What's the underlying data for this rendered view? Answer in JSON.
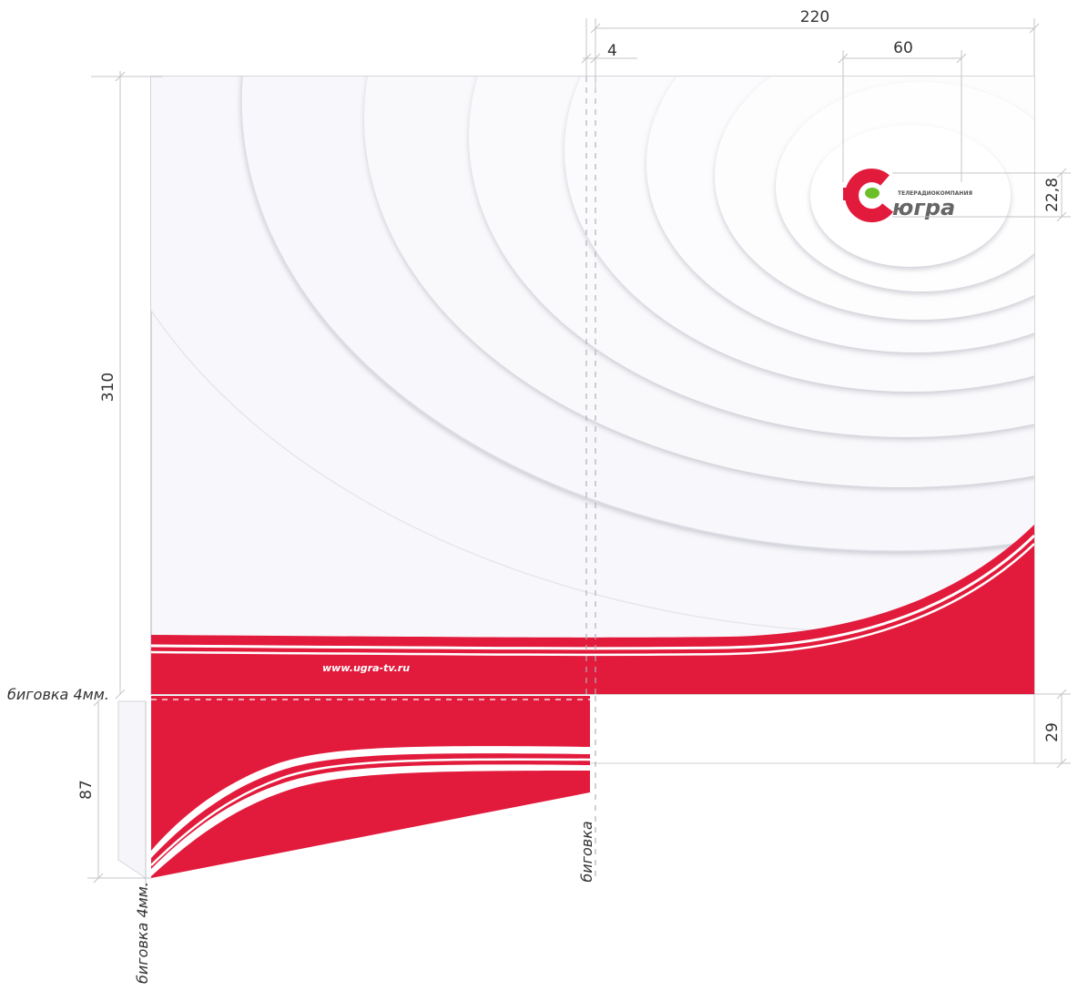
{
  "dimensions": {
    "width_total": "220",
    "spine": "4",
    "logo_width": "60",
    "height_total": "310",
    "logo_height": "22,8",
    "flap_height": "87",
    "pocket_height": "29"
  },
  "annotations": {
    "crease_top": "биговка  4мм.",
    "crease_left": "биговка  4мм.",
    "crease_middle": "биговка"
  },
  "branding": {
    "logo_letter": "Ю",
    "logo_small": "ТЕЛЕРАДИОКОМПАНИЯ",
    "logo_name": "югра",
    "website": "www.ugra-tv.ru"
  },
  "colors": {
    "brand_red": "#e21b3c",
    "brand_green": "#6dbf2a",
    "panel_bg": "#f8f8fc",
    "brand_gray": "#666666"
  }
}
